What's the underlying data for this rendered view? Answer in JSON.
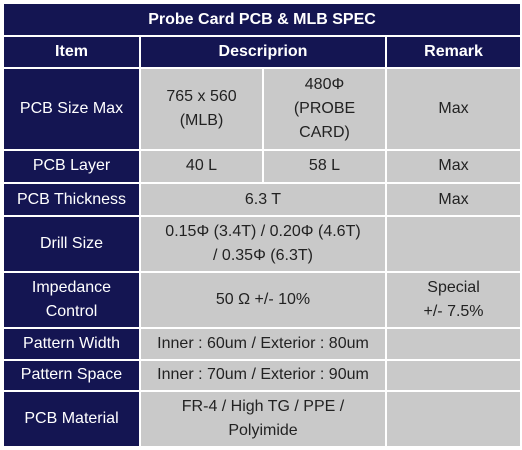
{
  "title": "Probe Card PCB & MLB SPEC",
  "headers": {
    "item": "Item",
    "description": "Descriprion",
    "remark": "Remark"
  },
  "rows": {
    "pcb_size_max": {
      "item": "PCB Size Max",
      "desc_mlb": "765 x 560\n(MLB)",
      "desc_probe": "480Φ\n(PROBE\nCARD)",
      "remark": "Max"
    },
    "pcb_layer": {
      "item": "PCB Layer",
      "desc_mlb": "40 L",
      "desc_probe": "58 L",
      "remark": "Max"
    },
    "pcb_thickness": {
      "item": "PCB Thickness",
      "desc": "6.3 T",
      "remark": "Max"
    },
    "drill_size": {
      "item": "Drill Size",
      "desc": "0.15Φ (3.4T) / 0.20Φ (4.6T)\n/ 0.35Φ (6.3T)",
      "remark": ""
    },
    "impedance_control": {
      "item": "Impedance\nControl",
      "desc": "50 Ω +/- 10%",
      "remark": "Special\n+/- 7.5%"
    },
    "pattern_width": {
      "item": "Pattern Width",
      "desc": "Inner : 60um / Exterior : 80um",
      "remark": ""
    },
    "pattern_space": {
      "item": "Pattern Space",
      "desc": "Inner : 70um / Exterior : 90um",
      "remark": ""
    },
    "pcb_material": {
      "item": "PCB Material",
      "desc": "FR-4 / High TG / PPE /\nPolyimide",
      "remark": ""
    }
  },
  "colors": {
    "header_bg": "#141552",
    "cell_bg": "#c9c9c9"
  }
}
